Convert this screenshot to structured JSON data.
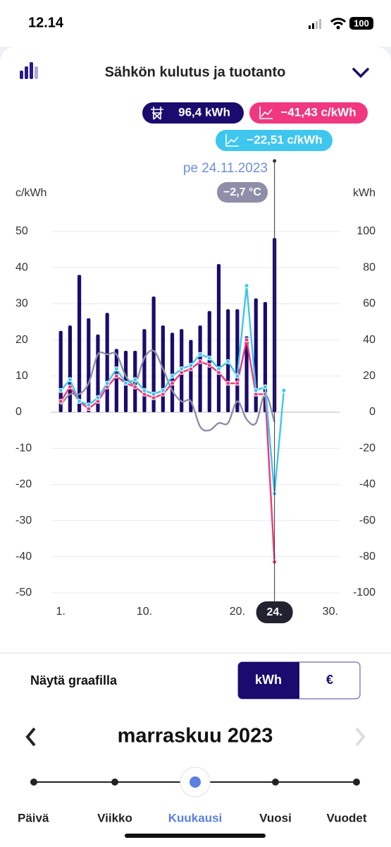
{
  "status_bar": {
    "time": "12.14",
    "battery": "100"
  },
  "header": {
    "title": "Sähkön kulutus ja tuotanto"
  },
  "badges": [
    "96,4 kWh",
    "−41,43 c/kWh",
    "−22,51 c/kWh"
  ],
  "selection": {
    "date": "pe 24.11.2023",
    "temperature": "−2,7 °C"
  },
  "chart_data": {
    "type": "combo",
    "ylabel": "c/kWh",
    "y2label": "kWh",
    "x": [
      1,
      2,
      3,
      4,
      5,
      6,
      7,
      8,
      9,
      10,
      11,
      12,
      13,
      14,
      15,
      16,
      17,
      18,
      19,
      20,
      21,
      22,
      23,
      24,
      25
    ],
    "xlim": [
      0,
      31
    ],
    "xticks": [
      {
        "value": 1,
        "label": "1."
      },
      {
        "value": 10,
        "label": "10."
      },
      {
        "value": 20,
        "label": "20."
      },
      {
        "value": 24,
        "label": "24."
      },
      {
        "value": 30,
        "label": "30."
      }
    ],
    "ylim": [
      -50,
      50
    ],
    "yticks": [
      50,
      40,
      30,
      20,
      10,
      0,
      -10,
      -20,
      -30,
      -40,
      -50
    ],
    "y2lim": [
      -100,
      100
    ],
    "y2ticks": [
      100,
      80,
      60,
      40,
      20,
      0,
      -20,
      -40,
      -60,
      -80,
      -100
    ],
    "grid": true,
    "series": [
      {
        "type": "bar",
        "axis": "y2",
        "color": "#1b0b6e",
        "values": [
          45,
          48,
          76,
          52,
          43,
          55,
          35,
          34,
          34,
          46,
          64,
          48,
          44,
          46,
          40,
          48,
          56,
          82,
          57,
          57,
          42,
          63,
          61,
          96.4,
          null
        ]
      },
      {
        "type": "line",
        "color": "#8d8ea8",
        "values": [
          2,
          5,
          5,
          8,
          16,
          16,
          16,
          10,
          8,
          15,
          17,
          12,
          6,
          3,
          3,
          -4,
          -5,
          -3,
          -3,
          3,
          -2,
          -3,
          5,
          -2.7,
          null
        ]
      },
      {
        "type": "line",
        "color": "#f0377f",
        "markers": true,
        "values": [
          3,
          7,
          3,
          1,
          3,
          7,
          10,
          8,
          7,
          5,
          4,
          5,
          8,
          11,
          12,
          14,
          13,
          11,
          8,
          8,
          20,
          5,
          5,
          -41.43,
          null
        ]
      },
      {
        "type": "line",
        "color": "#3ec6ee",
        "markers": true,
        "values": [
          6,
          9,
          3,
          2,
          4,
          8,
          12,
          8,
          9,
          6,
          5,
          6,
          10,
          12,
          13,
          16,
          15,
          12,
          14,
          10,
          35,
          6,
          7,
          -22.51,
          6
        ]
      }
    ]
  },
  "controls": {
    "label": "Näytä graafilla",
    "options": [
      "kWh",
      "€"
    ]
  },
  "period": {
    "title": "marraskuu 2023",
    "tabs": [
      "Päivä",
      "Viikko",
      "Kuukausi",
      "Vuosi",
      "Vuodet"
    ]
  }
}
